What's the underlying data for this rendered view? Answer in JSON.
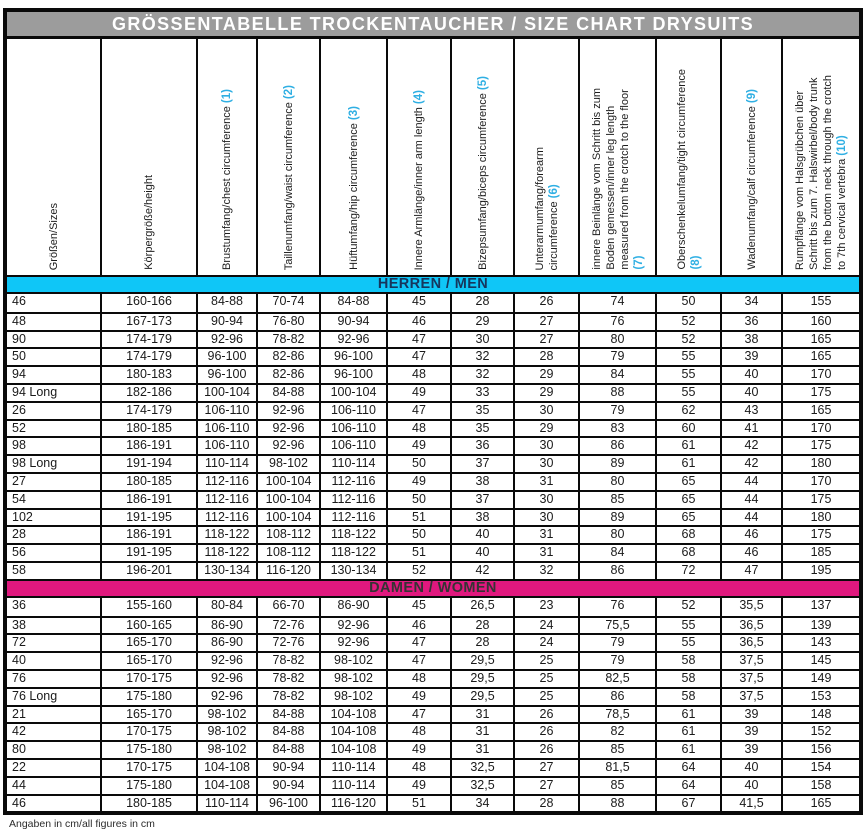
{
  "title": "GRÖSSENTABELLE TROCKENTAUCHER / SIZE CHART DRYSUITS",
  "footer": "Angaben in cm/all figures in cm",
  "colors": {
    "title_bg": "#9c9c9c",
    "title_text": "#ffffff",
    "men_band_bg": "#0fc6f7",
    "men_band_text": "#16365d",
    "women_band_bg": "#e0187e",
    "women_band_text": "#333333",
    "header_number_accent": "#2fafe3",
    "grid_line": "#0a0a0a"
  },
  "columns": [
    {
      "text": "Größen/Sizes",
      "num": ""
    },
    {
      "text": "Körpergröße/height",
      "num": ""
    },
    {
      "text": "Brustumfang/chest circumference ",
      "num": "(1)"
    },
    {
      "text": "Taillenumfang/waist circumference ",
      "num": "(2)"
    },
    {
      "text": "Hüftumfang/hip circumference ",
      "num": "(3)"
    },
    {
      "text": "Innere Armlänge/inner arm length ",
      "num": "(4)"
    },
    {
      "text": "Bizepsumfang/biceps circumference ",
      "num": "(5)"
    },
    {
      "text": "Unterarmumfang/forearm\ncircumference ",
      "num": "(6)"
    },
    {
      "text": "innere Beinlänge vom Schritt bis zum\nBoden gemessen/inner leg length\nmeasured from the crotch to the floor\n",
      "num": "(7)"
    },
    {
      "text": "Oberschenkelumfang/tight circumference\n",
      "num": "(8)"
    },
    {
      "text": "Wadenumfang/calf circumference ",
      "num": "(9)"
    },
    {
      "text": "Rumpflänge vom Halsgrübchen über\nSchritt bis zum 7. Halswirbel/body trunk\nfrom the bottom neck through the crotch\nto 7th cervical vertebra ",
      "num": "(10)"
    }
  ],
  "sections": [
    {
      "label": "HERREN / MEN",
      "rows": [
        [
          "46",
          "160-166",
          "84-88",
          "70-74",
          "84-88",
          "45",
          "28",
          "26",
          "74",
          "50",
          "34",
          "155"
        ],
        [
          "48",
          "167-173",
          "90-94",
          "76-80",
          "90-94",
          "46",
          "29",
          "27",
          "76",
          "52",
          "36",
          "160"
        ],
        [
          "90",
          "174-179",
          "92-96",
          "78-82",
          "92-96",
          "47",
          "30",
          "27",
          "80",
          "52",
          "38",
          "165"
        ],
        [
          "50",
          "174-179",
          "96-100",
          "82-86",
          "96-100",
          "47",
          "32",
          "28",
          "79",
          "55",
          "39",
          "165"
        ],
        [
          "94",
          "180-183",
          "96-100",
          "82-86",
          "96-100",
          "48",
          "32",
          "29",
          "84",
          "55",
          "40",
          "170"
        ],
        [
          "94 Long",
          "182-186",
          "100-104",
          "84-88",
          "100-104",
          "49",
          "33",
          "29",
          "88",
          "55",
          "40",
          "175"
        ],
        [
          "26",
          "174-179",
          "106-110",
          "92-96",
          "106-110",
          "47",
          "35",
          "30",
          "79",
          "62",
          "43",
          "165"
        ],
        [
          "52",
          "180-185",
          "106-110",
          "92-96",
          "106-110",
          "48",
          "35",
          "29",
          "83",
          "60",
          "41",
          "170"
        ],
        [
          "98",
          "186-191",
          "106-110",
          "92-96",
          "106-110",
          "49",
          "36",
          "30",
          "86",
          "61",
          "42",
          "175"
        ],
        [
          "98 Long",
          "191-194",
          "110-114",
          "98-102",
          "110-114",
          "50",
          "37",
          "30",
          "89",
          "61",
          "42",
          "180"
        ],
        [
          "27",
          "180-185",
          "112-116",
          "100-104",
          "112-116",
          "49",
          "38",
          "31",
          "80",
          "65",
          "44",
          "170"
        ],
        [
          "54",
          "186-191",
          "112-116",
          "100-104",
          "112-116",
          "50",
          "37",
          "30",
          "85",
          "65",
          "44",
          "175"
        ],
        [
          "102",
          "191-195",
          "112-116",
          "100-104",
          "112-116",
          "51",
          "38",
          "30",
          "89",
          "65",
          "44",
          "180"
        ],
        [
          "28",
          "186-191",
          "118-122",
          "108-112",
          "118-122",
          "50",
          "40",
          "31",
          "80",
          "68",
          "46",
          "175"
        ],
        [
          "56",
          "191-195",
          "118-122",
          "108-112",
          "118-122",
          "51",
          "40",
          "31",
          "84",
          "68",
          "46",
          "185"
        ],
        [
          "58",
          "196-201",
          "130-134",
          "116-120",
          "130-134",
          "52",
          "42",
          "32",
          "86",
          "72",
          "47",
          "195"
        ]
      ]
    },
    {
      "label": "DAMEN / WOMEN",
      "rows": [
        [
          "36",
          "155-160",
          "80-84",
          "66-70",
          "86-90",
          "45",
          "26,5",
          "23",
          "76",
          "52",
          "35,5",
          "137"
        ],
        [
          "38",
          "160-165",
          "86-90",
          "72-76",
          "92-96",
          "46",
          "28",
          "24",
          "75,5",
          "55",
          "36,5",
          "139"
        ],
        [
          "72",
          "165-170",
          "86-90",
          "72-76",
          "92-96",
          "47",
          "28",
          "24",
          "79",
          "55",
          "36,5",
          "143"
        ],
        [
          "40",
          "165-170",
          "92-96",
          "78-82",
          "98-102",
          "47",
          "29,5",
          "25",
          "79",
          "58",
          "37,5",
          "145"
        ],
        [
          "76",
          "170-175",
          "92-96",
          "78-82",
          "98-102",
          "48",
          "29,5",
          "25",
          "82,5",
          "58",
          "37,5",
          "149"
        ],
        [
          "76 Long",
          "175-180",
          "92-96",
          "78-82",
          "98-102",
          "49",
          "29,5",
          "25",
          "86",
          "58",
          "37,5",
          "153"
        ],
        [
          "21",
          "165-170",
          "98-102",
          "84-88",
          "104-108",
          "47",
          "31",
          "26",
          "78,5",
          "61",
          "39",
          "148"
        ],
        [
          "42",
          "170-175",
          "98-102",
          "84-88",
          "104-108",
          "48",
          "31",
          "26",
          "82",
          "61",
          "39",
          "152"
        ],
        [
          "80",
          "175-180",
          "98-102",
          "84-88",
          "104-108",
          "49",
          "31",
          "26",
          "85",
          "61",
          "39",
          "156"
        ],
        [
          "22",
          "170-175",
          "104-108",
          "90-94",
          "110-114",
          "48",
          "32,5",
          "27",
          "81,5",
          "64",
          "40",
          "154"
        ],
        [
          "44",
          "175-180",
          "104-108",
          "90-94",
          "110-114",
          "49",
          "32,5",
          "27",
          "85",
          "64",
          "40",
          "158"
        ],
        [
          "46",
          "180-185",
          "110-114",
          "96-100",
          "116-120",
          "51",
          "34",
          "28",
          "88",
          "67",
          "41,5",
          "165"
        ]
      ]
    }
  ]
}
